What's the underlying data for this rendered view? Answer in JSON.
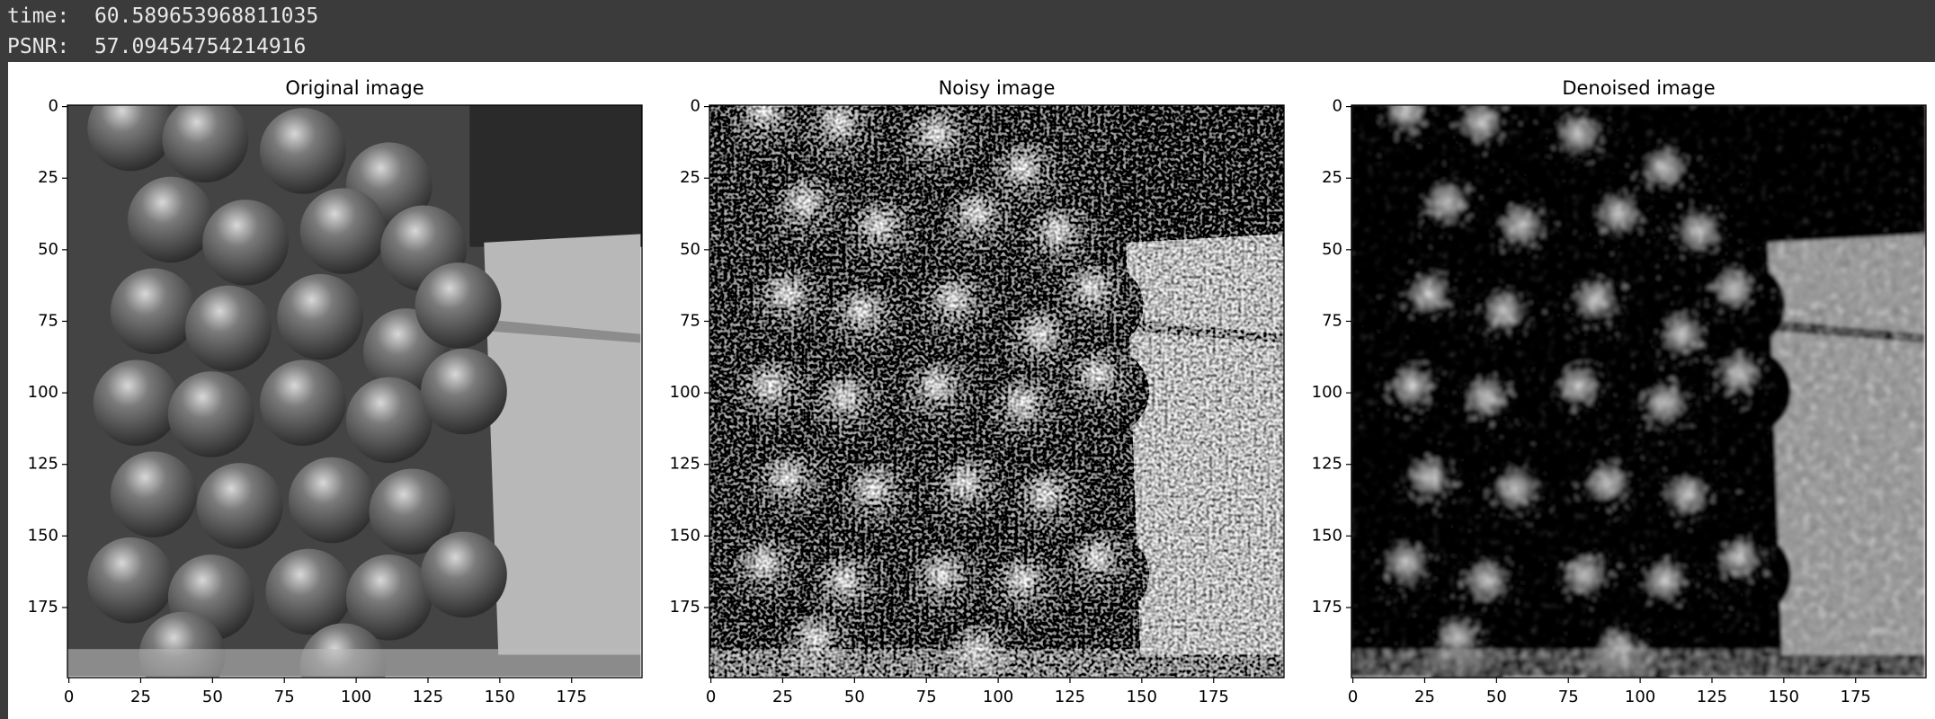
{
  "output": {
    "lines": [
      {
        "label": "time:",
        "value": "60.589653968811035"
      },
      {
        "label": "PSNR:",
        "value": "57.09454754214916"
      }
    ]
  },
  "plots": [
    {
      "title": "Original image",
      "xlim": [
        -0.5,
        199.5
      ],
      "ylim": [
        199.5,
        -0.5
      ],
      "xticks": [
        0,
        25,
        50,
        75,
        100,
        125,
        150,
        175
      ],
      "yticks": [
        0,
        25,
        50,
        75,
        100,
        125,
        150,
        175
      ]
    },
    {
      "title": "Noisy image",
      "xlim": [
        -0.5,
        199.5
      ],
      "ylim": [
        199.5,
        -0.5
      ],
      "xticks": [
        0,
        25,
        50,
        75,
        100,
        125,
        150,
        175
      ],
      "yticks": [
        0,
        25,
        50,
        75,
        100,
        125,
        150,
        175
      ]
    },
    {
      "title": "Denoised image",
      "xlim": [
        -0.5,
        199.5
      ],
      "ylim": [
        199.5,
        -0.5
      ],
      "xticks": [
        0,
        25,
        50,
        75,
        100,
        125,
        150,
        175
      ],
      "yticks": [
        0,
        25,
        50,
        75,
        100,
        125,
        150,
        175
      ]
    }
  ]
}
